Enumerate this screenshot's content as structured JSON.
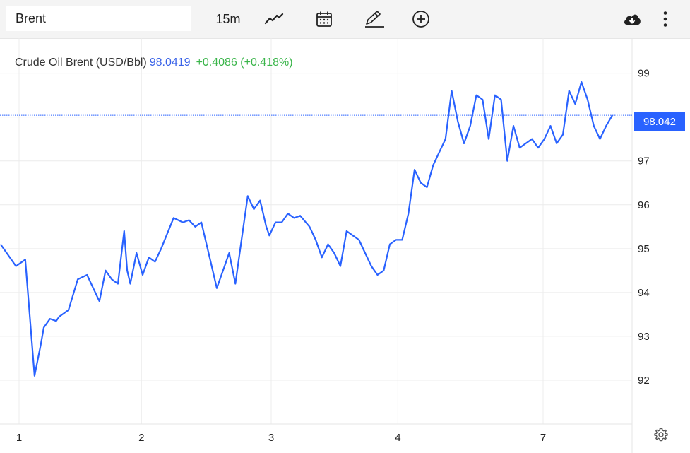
{
  "toolbar": {
    "search_value": "Brent",
    "interval_label": "15m",
    "icons": [
      "line-chart-icon",
      "calendar-icon",
      "pencil-icon",
      "plus-circle-icon",
      "cloud-download-icon",
      "more-vertical-icon"
    ]
  },
  "legend": {
    "name": "Crude Oil Brent (USD/Bbl)",
    "value": "98.0419",
    "change": "+0.4086 (+0.418%)"
  },
  "price_tag": "98.042",
  "colors": {
    "line": "#2962ff",
    "price_tag": "#2962ff",
    "change_positive": "#3ab54a",
    "legend_value": "#3a63e8"
  },
  "chart_data": {
    "type": "line",
    "title": "",
    "xlabel": "",
    "ylabel": "",
    "last_value": 98.042,
    "ylim": [
      91.0,
      99.8
    ],
    "y_ticks": [
      92,
      93,
      94,
      95,
      96,
      97,
      98,
      99
    ],
    "y_tick_labels": [
      "92",
      "93",
      "94",
      "95",
      "96",
      "97",
      "",
      "99"
    ],
    "x_ticks": [
      0,
      1.98,
      4.08,
      6.13,
      8.48
    ],
    "x_tick_labels": [
      "1",
      "2",
      "3",
      "4",
      "7"
    ],
    "grid": true,
    "series": [
      {
        "x": [
          -0.3,
          -0.05,
          0.1,
          0.25,
          0.35,
          0.4,
          0.5,
          0.6,
          0.65,
          0.7,
          0.8,
          0.95,
          1.1,
          1.2,
          1.3,
          1.4,
          1.5,
          1.6,
          1.7,
          1.75,
          1.8,
          1.9,
          2.0,
          2.1,
          2.2,
          2.3,
          2.5,
          2.65,
          2.75,
          2.85,
          2.95,
          3.1,
          3.2,
          3.3,
          3.4,
          3.5,
          3.6,
          3.7,
          3.8,
          3.9,
          4.0,
          4.05,
          4.15,
          4.25,
          4.35,
          4.45,
          4.55,
          4.7,
          4.8,
          4.9,
          5.0,
          5.1,
          5.2,
          5.3,
          5.4,
          5.5,
          5.6,
          5.7,
          5.8,
          5.9,
          6.0,
          6.1,
          6.2,
          6.3,
          6.4,
          6.5,
          6.6,
          6.7,
          6.8,
          6.9,
          7.0,
          7.1,
          7.2,
          7.3,
          7.4,
          7.5,
          7.6,
          7.7,
          7.8,
          7.9,
          8.0,
          8.1,
          8.2,
          8.3,
          8.4,
          8.5,
          8.6,
          8.7,
          8.8,
          8.9,
          9.0,
          9.1,
          9.2,
          9.3,
          9.4,
          9.5,
          9.6
        ],
        "values": [
          95.1,
          94.6,
          94.75,
          92.1,
          92.8,
          93.2,
          93.4,
          93.35,
          93.45,
          93.5,
          93.6,
          94.3,
          94.4,
          94.1,
          93.8,
          94.5,
          94.3,
          94.2,
          95.4,
          94.5,
          94.2,
          94.9,
          94.4,
          94.8,
          94.7,
          95.0,
          95.7,
          95.6,
          95.65,
          95.5,
          95.6,
          94.7,
          94.1,
          94.5,
          94.9,
          94.2,
          95.2,
          96.2,
          95.9,
          96.1,
          95.5,
          95.3,
          95.6,
          95.6,
          95.8,
          95.7,
          95.75,
          95.5,
          95.2,
          94.8,
          95.1,
          94.9,
          94.6,
          95.4,
          95.3,
          95.2,
          94.9,
          94.6,
          94.4,
          94.5,
          95.1,
          95.2,
          95.2,
          95.8,
          96.8,
          96.5,
          96.4,
          96.9,
          97.2,
          97.5,
          98.6,
          97.9,
          97.4,
          97.8,
          98.5,
          98.4,
          97.5,
          98.5,
          98.4,
          97.0,
          97.8,
          97.3,
          97.4,
          97.5,
          97.3,
          97.5,
          97.8,
          97.4,
          97.6,
          98.6,
          98.3,
          98.8,
          98.4,
          97.8,
          97.5,
          97.8,
          98.04
        ]
      }
    ]
  }
}
